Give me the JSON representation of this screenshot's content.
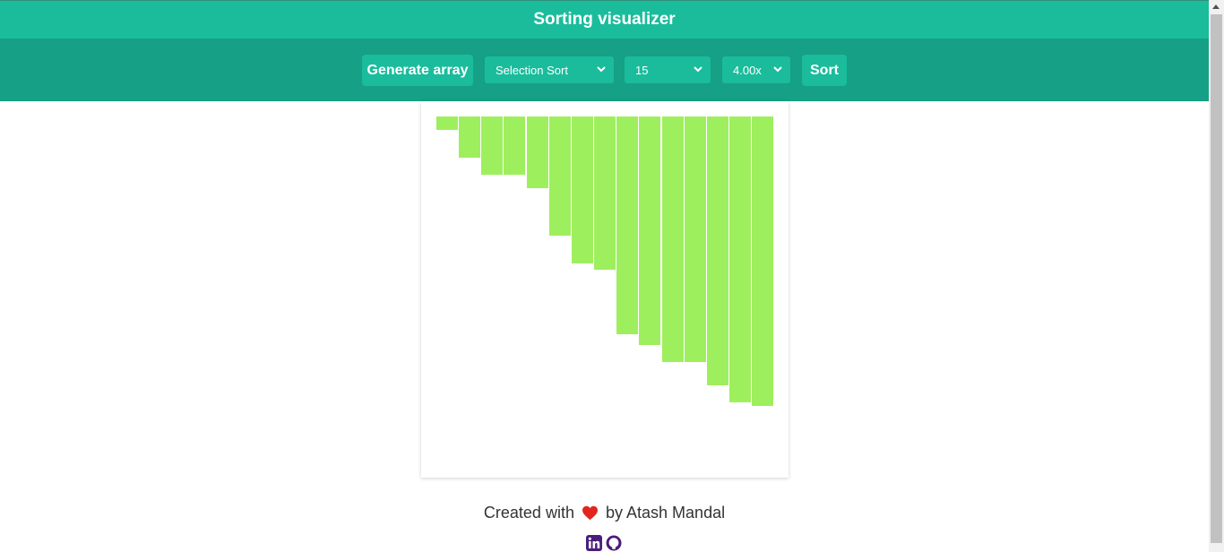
{
  "header": {
    "title": "Sorting visualizer"
  },
  "toolbar": {
    "generate_label": "Generate array",
    "algorithm": {
      "selected": "Selection Sort"
    },
    "array_size": {
      "selected": "15"
    },
    "speed": {
      "selected": "4.00x"
    },
    "sort_label": "Sort"
  },
  "bars": {
    "color": "#9eef5e",
    "values": [
      15,
      46,
      65,
      65,
      80,
      133,
      164,
      171,
      243,
      255,
      274,
      274,
      300,
      319,
      323
    ]
  },
  "footer": {
    "created_with": "Created with",
    "by_author": "by Atash Mandal"
  },
  "icons": [
    "chevron-down-icon",
    "heart-icon",
    "linkedin-icon",
    "github-icon"
  ],
  "colors": {
    "header": "#1abc9c",
    "toolbar": "#16a085",
    "heart": "#e0261f",
    "social": "#4a1e7a"
  }
}
